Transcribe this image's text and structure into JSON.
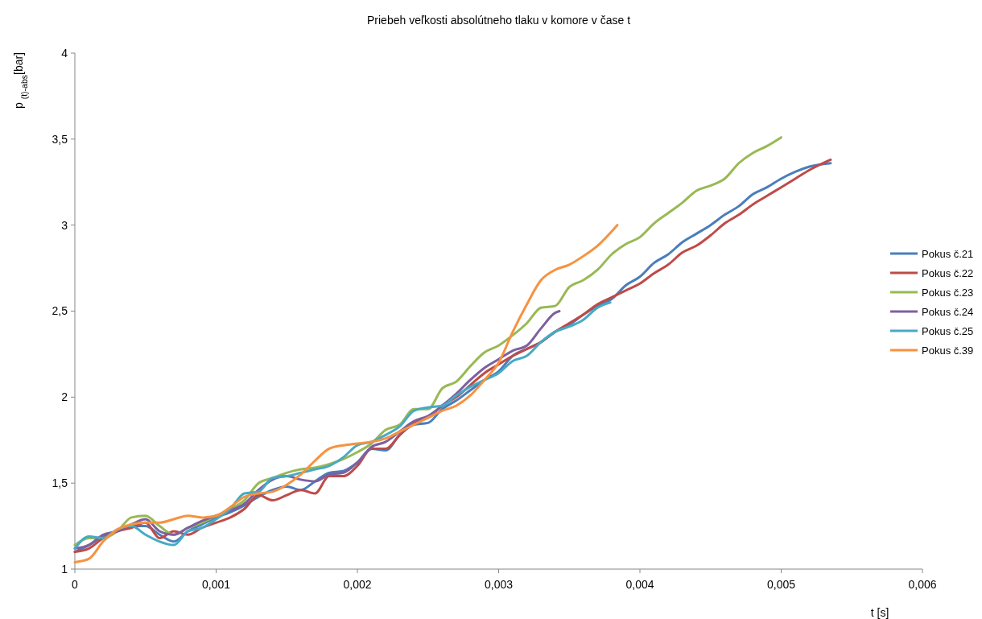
{
  "chart_data": {
    "type": "line",
    "title": "Priebeh veľkosti absolútneho tlaku v komore v čase t",
    "xlabel": "t [s]",
    "ylabel": "p $_{(t)-abs}$[bar]",
    "xlim": [
      0,
      0.006
    ],
    "xticks": [
      0,
      {
        "value": 0.001,
        "label": "0,001"
      },
      {
        "value": 0.002,
        "label": "0,002"
      },
      {
        "value": 0.003,
        "label": "0,003"
      },
      {
        "value": 0.004,
        "label": "0,004"
      },
      {
        "value": 0.005,
        "label": "0,005"
      },
      {
        "value": 0.006,
        "label": "0,006"
      }
    ],
    "ylim": [
      1,
      4
    ],
    "yticks": [
      1,
      {
        "value": 1.5,
        "label": "1,5"
      },
      2,
      {
        "value": 2.5,
        "label": "2,5"
      },
      3,
      {
        "value": 3.5,
        "label": "3,5"
      },
      4
    ],
    "grid": false,
    "legend": "right",
    "marker": "none",
    "line_style": "solid",
    "series": [
      {
        "name": "Pokus č.21",
        "color": "#4a7ebb",
        "x": [
          0,
          0.0001,
          0.0002,
          0.0003,
          0.0004,
          0.0005,
          0.0006,
          0.0007,
          0.0008,
          0.0009,
          0.001,
          0.0011,
          0.0012,
          0.0013,
          0.0014,
          0.0015,
          0.0016,
          0.0017,
          0.0018,
          0.0019,
          0.002,
          0.0021,
          0.0022,
          0.0023,
          0.0024,
          0.0025,
          0.0026,
          0.0027,
          0.0028,
          0.0029,
          0.003,
          0.0031,
          0.0032,
          0.0033,
          0.0034,
          0.0035,
          0.0036,
          0.0037,
          0.0038,
          0.0039,
          0.004,
          0.0041,
          0.0042,
          0.0043,
          0.0044,
          0.0045,
          0.0046,
          0.0047,
          0.0048,
          0.0049,
          0.005,
          0.0051,
          0.0052,
          0.00535
        ],
        "values": [
          1.1,
          1.14,
          1.19,
          1.22,
          1.25,
          1.25,
          1.2,
          1.16,
          1.22,
          1.26,
          1.3,
          1.33,
          1.37,
          1.42,
          1.46,
          1.48,
          1.46,
          1.51,
          1.56,
          1.57,
          1.62,
          1.7,
          1.69,
          1.78,
          1.84,
          1.85,
          1.93,
          1.98,
          2.04,
          2.1,
          2.15,
          2.24,
          2.28,
          2.32,
          2.38,
          2.42,
          2.48,
          2.53,
          2.57,
          2.65,
          2.7,
          2.78,
          2.83,
          2.9,
          2.95,
          3.0,
          3.06,
          3.11,
          3.18,
          3.22,
          3.27,
          3.31,
          3.34,
          3.36
        ]
      },
      {
        "name": "Pokus č.22",
        "color": "#be4b48",
        "x": [
          0,
          0.0001,
          0.0002,
          0.0003,
          0.0004,
          0.0005,
          0.0006,
          0.0007,
          0.0008,
          0.0009,
          0.001,
          0.0011,
          0.0012,
          0.0013,
          0.0014,
          0.0015,
          0.0016,
          0.0017,
          0.0018,
          0.0019,
          0.002,
          0.0021,
          0.0022,
          0.0023,
          0.0024,
          0.0025,
          0.0026,
          0.0027,
          0.0028,
          0.0029,
          0.003,
          0.0031,
          0.0032,
          0.0033,
          0.0034,
          0.0035,
          0.0036,
          0.0037,
          0.0038,
          0.0039,
          0.004,
          0.0041,
          0.0042,
          0.0043,
          0.0044,
          0.0045,
          0.0046,
          0.0047,
          0.0048,
          0.0049,
          0.005,
          0.0051,
          0.0052,
          0.00535
        ],
        "values": [
          1.1,
          1.12,
          1.18,
          1.22,
          1.24,
          1.27,
          1.18,
          1.22,
          1.2,
          1.24,
          1.27,
          1.3,
          1.35,
          1.43,
          1.4,
          1.43,
          1.46,
          1.44,
          1.54,
          1.54,
          1.6,
          1.7,
          1.7,
          1.78,
          1.85,
          1.88,
          1.95,
          2.0,
          2.07,
          2.14,
          2.19,
          2.24,
          2.28,
          2.32,
          2.38,
          2.43,
          2.48,
          2.54,
          2.58,
          2.62,
          2.66,
          2.72,
          2.77,
          2.84,
          2.88,
          2.94,
          3.01,
          3.06,
          3.12,
          3.17,
          3.22,
          3.27,
          3.32,
          3.38
        ]
      },
      {
        "name": "Pokus č.23",
        "color": "#98b954",
        "x": [
          0,
          0.0001,
          0.0002,
          0.0003,
          0.0004,
          0.0005,
          0.0006,
          0.0007,
          0.0008,
          0.0009,
          0.001,
          0.0011,
          0.0012,
          0.0013,
          0.0014,
          0.0015,
          0.0016,
          0.0017,
          0.0018,
          0.0019,
          0.002,
          0.0021,
          0.0022,
          0.0023,
          0.0024,
          0.0025,
          0.0026,
          0.0027,
          0.0028,
          0.0029,
          0.003,
          0.0031,
          0.0032,
          0.0033,
          0.0034,
          0.0035,
          0.0036,
          0.0037,
          0.0038,
          0.0039,
          0.004,
          0.0041,
          0.0042,
          0.0043,
          0.0044,
          0.0045,
          0.0046,
          0.0047,
          0.0048,
          0.0049,
          0.005
        ],
        "values": [
          1.14,
          1.18,
          1.18,
          1.22,
          1.3,
          1.31,
          1.25,
          1.2,
          1.24,
          1.27,
          1.31,
          1.35,
          1.4,
          1.5,
          1.53,
          1.56,
          1.58,
          1.59,
          1.61,
          1.64,
          1.68,
          1.73,
          1.81,
          1.84,
          1.93,
          1.93,
          2.05,
          2.09,
          2.18,
          2.26,
          2.3,
          2.36,
          2.43,
          2.52,
          2.53,
          2.64,
          2.68,
          2.74,
          2.83,
          2.89,
          2.93,
          3.01,
          3.07,
          3.13,
          3.2,
          3.23,
          3.27,
          3.36,
          3.42,
          3.46,
          3.51
        ]
      },
      {
        "name": "Pokus č.24",
        "color": "#7d60a0",
        "x": [
          0,
          0.0001,
          0.0002,
          0.0003,
          0.0004,
          0.0005,
          0.0006,
          0.0007,
          0.0008,
          0.0009,
          0.001,
          0.0011,
          0.0012,
          0.0013,
          0.0014,
          0.0015,
          0.0016,
          0.0017,
          0.0018,
          0.0019,
          0.002,
          0.0021,
          0.0022,
          0.0023,
          0.0024,
          0.0025,
          0.0026,
          0.0027,
          0.0028,
          0.0029,
          0.003,
          0.0031,
          0.0032,
          0.0033,
          0.0034,
          0.00343
        ],
        "values": [
          1.12,
          1.14,
          1.2,
          1.22,
          1.26,
          1.29,
          1.22,
          1.2,
          1.24,
          1.28,
          1.31,
          1.34,
          1.38,
          1.46,
          1.52,
          1.54,
          1.52,
          1.51,
          1.55,
          1.56,
          1.62,
          1.71,
          1.74,
          1.8,
          1.86,
          1.89,
          1.95,
          2.02,
          2.1,
          2.17,
          2.22,
          2.27,
          2.3,
          2.4,
          2.49,
          2.5
        ]
      },
      {
        "name": "Pokus č.25",
        "color": "#46aac5",
        "x": [
          0,
          0.0001,
          0.0002,
          0.0003,
          0.0004,
          0.0005,
          0.0006,
          0.0007,
          0.0008,
          0.0009,
          0.001,
          0.0011,
          0.0012,
          0.0013,
          0.0014,
          0.0015,
          0.0016,
          0.0017,
          0.0018,
          0.0019,
          0.002,
          0.0021,
          0.0022,
          0.0023,
          0.0024,
          0.0025,
          0.0026,
          0.0027,
          0.0028,
          0.0029,
          0.003,
          0.0031,
          0.0032,
          0.0033,
          0.0034,
          0.0035,
          0.0036,
          0.0037,
          0.00379
        ],
        "values": [
          1.12,
          1.19,
          1.18,
          1.23,
          1.25,
          1.2,
          1.16,
          1.14,
          1.22,
          1.24,
          1.29,
          1.35,
          1.44,
          1.45,
          1.53,
          1.54,
          1.56,
          1.58,
          1.6,
          1.65,
          1.72,
          1.74,
          1.78,
          1.83,
          1.92,
          1.94,
          1.95,
          2.01,
          2.06,
          2.1,
          2.14,
          2.21,
          2.24,
          2.32,
          2.38,
          2.41,
          2.45,
          2.52,
          2.55
        ]
      },
      {
        "name": "Pokus č.39",
        "color": "#f69240",
        "x": [
          0,
          0.0001,
          0.0002,
          0.0003,
          0.0004,
          0.0005,
          0.0006,
          0.0007,
          0.0008,
          0.0009,
          0.001,
          0.0011,
          0.0012,
          0.0013,
          0.0014,
          0.0015,
          0.0016,
          0.0017,
          0.0018,
          0.0019,
          0.002,
          0.0021,
          0.0022,
          0.0023,
          0.0024,
          0.0025,
          0.0026,
          0.0027,
          0.0028,
          0.0029,
          0.003,
          0.0031,
          0.0032,
          0.0033,
          0.0034,
          0.0035,
          0.0036,
          0.0037,
          0.00384
        ],
        "values": [
          1.04,
          1.06,
          1.16,
          1.23,
          1.26,
          1.27,
          1.27,
          1.29,
          1.31,
          1.3,
          1.31,
          1.36,
          1.42,
          1.44,
          1.45,
          1.49,
          1.55,
          1.63,
          1.7,
          1.72,
          1.73,
          1.74,
          1.76,
          1.8,
          1.84,
          1.88,
          1.92,
          1.95,
          2.01,
          2.1,
          2.2,
          2.38,
          2.54,
          2.68,
          2.74,
          2.77,
          2.82,
          2.88,
          3.0
        ]
      }
    ]
  }
}
